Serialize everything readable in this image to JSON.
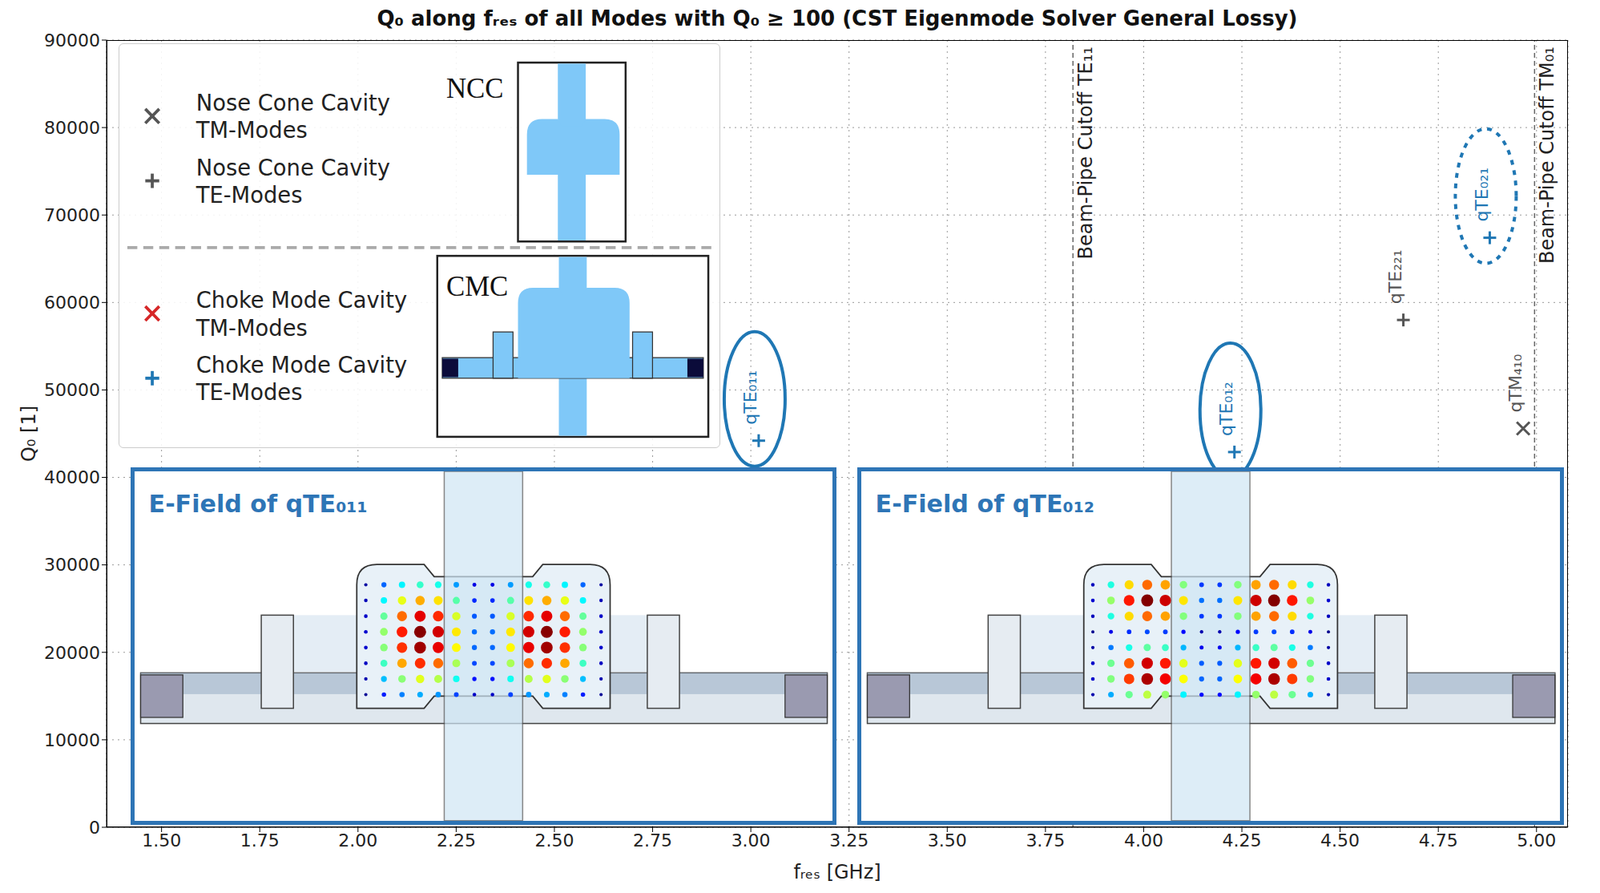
{
  "chart_data": {
    "type": "scatter",
    "title": "Q₀ along fᵣₑₛ of all Modes with Q₀ ≥ 100 (CST Eigenmode Solver General Lossy)",
    "x_label": "fᵣₑₛ [GHz]",
    "y_label": "Q₀ [1]",
    "xlim": [
      1.36,
      5.08
    ],
    "ylim": [
      0,
      90000
    ],
    "xticks": [
      {
        "value": 1.5,
        "label": "1.50"
      },
      {
        "value": 1.75,
        "label": "1.75"
      },
      {
        "value": 2,
        "label": "2.00"
      },
      {
        "value": 2.25,
        "label": "2.25"
      },
      {
        "value": 2.5,
        "label": "2.50"
      },
      {
        "value": 2.75,
        "label": "2.75"
      },
      {
        "value": 3,
        "label": "3.00"
      },
      {
        "value": 3.25,
        "label": "3.25"
      },
      {
        "value": 3.5,
        "label": "3.50"
      },
      {
        "value": 3.75,
        "label": "3.75"
      },
      {
        "value": 4,
        "label": "4.00"
      },
      {
        "value": 4.25,
        "label": "4.25"
      },
      {
        "value": 4.5,
        "label": "4.50"
      },
      {
        "value": 4.75,
        "label": "4.75"
      },
      {
        "value": 5,
        "label": "5.00"
      }
    ],
    "yticks": [
      0,
      10000,
      20000,
      30000,
      40000,
      50000,
      60000,
      70000,
      80000,
      90000
    ],
    "grid": true,
    "legend": "upper left",
    "legend_groups": [
      {
        "label": "NCC"
      },
      {
        "label": "CMC"
      }
    ],
    "series": [
      {
        "name": "Nose Cone Cavity TM-Modes",
        "group": "NCC",
        "color": "#555555",
        "marker": "x",
        "x": [
          4.966
        ],
        "values": [
          45600
        ],
        "labels": [
          "qTM₄₁₀"
        ]
      },
      {
        "name": "Nose Cone Cavity TE-Modes",
        "group": "NCC",
        "color": "#555555",
        "marker": "plus",
        "x": [
          4.661
        ],
        "values": [
          58000
        ],
        "labels": [
          "qTE₂₂₁"
        ]
      },
      {
        "name": "Choke Mode Cavity TM-Modes",
        "group": "CMC",
        "color": "#d62728",
        "marker": "x",
        "x": [],
        "values": [],
        "labels": []
      },
      {
        "name": "Choke Mode Cavity TE-Modes",
        "group": "CMC",
        "color": "#1f77b4",
        "marker": "plus",
        "x": [
          3.02,
          4.231,
          4.881
        ],
        "values": [
          44200,
          42900,
          67400
        ],
        "labels": [
          "qTE₀₁₁",
          "qTE₀₁₂",
          "qTE₀₂₁"
        ]
      }
    ],
    "reference_lines": [
      {
        "x": 3.82,
        "label": "Beam-Pipe Cutoff TE₁₁"
      },
      {
        "x": 4.995,
        "label": "Beam-Pipe Cutoff TM₀₁"
      }
    ],
    "insets": [
      {
        "title": "E-Field of qTE₀₁₁",
        "mode": "qTE₀₁₁"
      },
      {
        "title": "E-Field of qTE₀₁₂",
        "mode": "qTE₀₁₂"
      }
    ]
  }
}
